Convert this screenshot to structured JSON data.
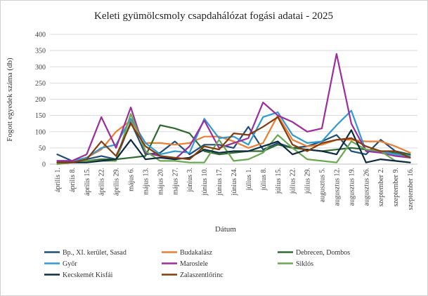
{
  "chart_data": {
    "type": "line",
    "title": "Keleti gyümölcsmoly csapdahálózat fogási adatai - 2025",
    "xlabel": "Dátum",
    "ylabel": "Fogott egyedek száma (db)",
    "ylim": [
      0,
      400
    ],
    "yticks": [
      0,
      50,
      100,
      150,
      200,
      250,
      300,
      350,
      400
    ],
    "grid": true,
    "legend_position": "bottom",
    "categories": [
      "április 1.",
      "április 8.",
      "április 15.",
      "április 22.",
      "április 29.",
      "május 6.",
      "május 13.",
      "május 20.",
      "május 27.",
      "június 3.",
      "június 10.",
      "június 17.",
      "június 24.",
      "július 1.",
      "július 8.",
      "július 15.",
      "július 22.",
      "július 29.",
      "augusztus 5.",
      "augusztus 12.",
      "augusztus 19.",
      "augusztus 26.",
      "szeptember 2.",
      "szeptember 9.",
      "szeptember 16."
    ],
    "series": [
      {
        "name": "Bp., XI. kerület, Sasad",
        "color": "#1f4e79",
        "values": [
          30,
          10,
          15,
          25,
          15,
          130,
          30,
          35,
          70,
          30,
          60,
          60,
          50,
          115,
          45,
          65,
          50,
          55,
          70,
          90,
          40,
          30,
          75,
          40,
          30
        ]
      },
      {
        "name": "Budakalász",
        "color": "#ed7d31",
        "values": [
          10,
          5,
          20,
          45,
          100,
          135,
          65,
          65,
          60,
          65,
          85,
          85,
          70,
          50,
          65,
          150,
          75,
          55,
          60,
          75,
          75,
          70,
          70,
          55,
          35
        ]
      },
      {
        "name": "Debrecen, Dombos",
        "color": "#2e6b30",
        "values": [
          5,
          5,
          10,
          15,
          15,
          20,
          25,
          120,
          110,
          95,
          40,
          30,
          35,
          40,
          40,
          60,
          50,
          45,
          40,
          45,
          50,
          45,
          40,
          35,
          30
        ]
      },
      {
        "name": "Győr",
        "color": "#2e9ad6",
        "values": [
          10,
          10,
          20,
          50,
          60,
          140,
          65,
          30,
          40,
          35,
          140,
          80,
          85,
          60,
          145,
          160,
          90,
          65,
          70,
          120,
          165,
          40,
          40,
          30,
          25
        ]
      },
      {
        "name": "Maroslele",
        "color": "#9b2d9e",
        "values": [
          10,
          10,
          30,
          145,
          50,
          175,
          35,
          25,
          15,
          55,
          135,
          50,
          65,
          80,
          190,
          150,
          130,
          100,
          110,
          340,
          125,
          40,
          35,
          25,
          20
        ]
      },
      {
        "name": "Siklós",
        "color": "#6aa84f",
        "values": [
          0,
          5,
          10,
          10,
          10,
          155,
          40,
          10,
          10,
          5,
          5,
          75,
          10,
          15,
          35,
          90,
          50,
          15,
          10,
          5,
          70,
          45,
          40,
          10,
          5
        ]
      },
      {
        "name": "Kecskemét Kisfái",
        "color": "#0d2b3e",
        "values": [
          5,
          5,
          5,
          10,
          15,
          75,
          15,
          20,
          15,
          20,
          45,
          35,
          40,
          40,
          55,
          70,
          30,
          45,
          40,
          30,
          105,
          5,
          15,
          10,
          5
        ]
      },
      {
        "name": "Zalaszentlőrinc",
        "color": "#843c0c",
        "values": [
          5,
          5,
          15,
          70,
          25,
          125,
          55,
          25,
          20,
          15,
          55,
          45,
          95,
          90,
          115,
          145,
          60,
          40,
          65,
          75,
          80,
          55,
          40,
          40,
          20
        ]
      }
    ]
  }
}
